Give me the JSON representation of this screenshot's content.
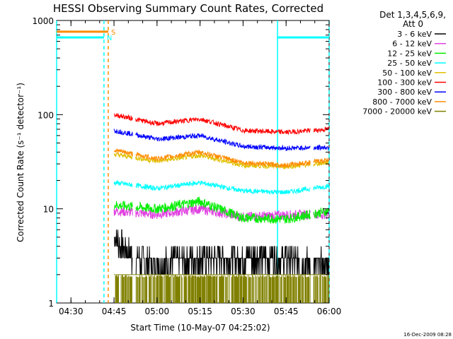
{
  "chart_data": {
    "type": "line",
    "title": "HESSI Observing Summary Count Rates, Corrected",
    "xlabel": "Start Time (10-May-07 04:25:02)",
    "ylabel": "Corrected Count Rate (s⁻¹ detector⁻¹)",
    "yscale": "log",
    "ylim": [
      1,
      1000
    ],
    "xlim_minutes": [
      0,
      95
    ],
    "x_ticks": [
      "04:30",
      "04:45",
      "05:00",
      "05:15",
      "05:30",
      "05:45",
      "06:00"
    ],
    "y_ticks": [
      "1",
      "10",
      "100",
      "1000"
    ],
    "legend": {
      "position": "top-right-outside",
      "header_line1": "Det 1,3,4,5,6,9,",
      "header_line2": "Att 0"
    },
    "flags": [
      {
        "label": "S",
        "color": "#ff8c00",
        "y_value": 760,
        "x_start": "04:25",
        "x_end": "04:43"
      },
      {
        "label": "N",
        "color": "#00ffff",
        "y_value": 660,
        "x_start": "04:25",
        "x_end": "04:41:30"
      }
    ],
    "vertical_markers": [
      {
        "x": "04:25",
        "color": "#00ffff",
        "style": "solid"
      },
      {
        "x": "04:41:30",
        "color": "#00ffff",
        "style": "dashed"
      },
      {
        "x": "04:43",
        "color": "#ff8c00",
        "style": "dashed"
      },
      {
        "x": "05:42",
        "color": "#00ffff",
        "style": "solid"
      },
      {
        "x": "06:00",
        "color": "#00ffff",
        "style": "dashed"
      }
    ],
    "top_right_segment": {
      "color": "#00ffff",
      "y_value": 660,
      "x_start": "05:42",
      "x_end": "06:00"
    },
    "series": [
      {
        "name": "3 - 6 keV",
        "color": "#000000",
        "x": [
          "04:45",
          "04:52",
          "05:00",
          "05:15",
          "05:30",
          "05:45",
          "05:54",
          "06:00"
        ],
        "values": [
          5,
          3,
          2.5,
          3,
          3,
          3,
          2.5,
          2.5
        ]
      },
      {
        "name": "6 - 12 keV",
        "color": "#e040e0",
        "x": [
          "04:45",
          "05:00",
          "05:15",
          "05:30",
          "05:45",
          "06:00"
        ],
        "values": [
          9.5,
          8.7,
          10,
          8.2,
          8.6,
          8.8
        ]
      },
      {
        "name": "12 - 25 keV",
        "color": "#00ee00",
        "x": [
          "04:45",
          "05:00",
          "05:15",
          "05:30",
          "05:45",
          "06:00"
        ],
        "values": [
          11,
          10,
          12,
          8,
          7.8,
          9.5
        ]
      },
      {
        "name": "25 - 50 keV",
        "color": "#00ffff",
        "x": [
          "04:45",
          "05:00",
          "05:15",
          "05:30",
          "05:45",
          "06:00"
        ],
        "values": [
          19,
          16.5,
          19,
          15.5,
          15,
          17.5
        ]
      },
      {
        "name": "50 - 100 keV",
        "color": "#e0c000",
        "x": [
          "04:45",
          "05:00",
          "05:15",
          "05:30",
          "05:45",
          "06:00"
        ],
        "values": [
          38,
          32,
          37,
          29,
          28,
          31
        ]
      },
      {
        "name": "100 - 300 keV",
        "color": "#ff0000",
        "x": [
          "04:45",
          "05:00",
          "05:15",
          "05:30",
          "05:45",
          "06:00"
        ],
        "values": [
          100,
          80,
          90,
          68,
          65,
          70
        ]
      },
      {
        "name": "300 - 800 keV",
        "color": "#0000ff",
        "x": [
          "04:45",
          "05:00",
          "05:15",
          "05:30",
          "05:45",
          "06:00"
        ],
        "values": [
          68,
          55,
          60,
          46,
          44,
          45
        ]
      },
      {
        "name": "800 - 7000 keV",
        "color": "#ff8c00",
        "x": [
          "04:45",
          "05:00",
          "05:15",
          "05:30",
          "05:45",
          "06:00"
        ],
        "values": [
          42,
          34,
          40,
          31,
          29,
          33
        ]
      },
      {
        "name": "7000 - 20000 keV",
        "color": "#808000",
        "x": [
          "04:45",
          "05:00",
          "05:15",
          "05:30",
          "05:45",
          "06:00"
        ],
        "values": [
          1.5,
          1.5,
          1.5,
          1.5,
          1.5,
          1.5
        ]
      }
    ]
  },
  "footer_date": "16-Dec-2009 08:28"
}
